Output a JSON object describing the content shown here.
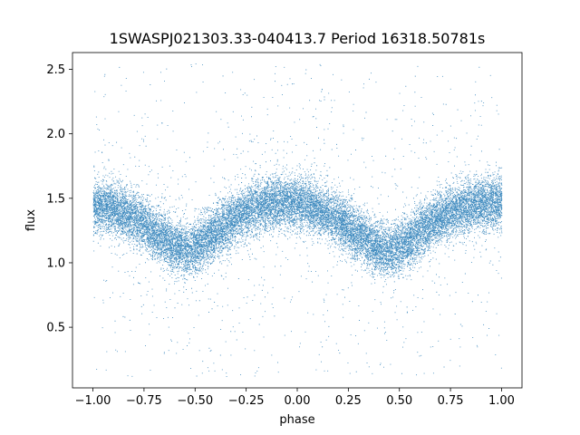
{
  "chart_data": {
    "type": "scatter",
    "title": "1SWASPJ021303.33-040413.7 Period 16318.50781s",
    "xlabel": "phase",
    "ylabel": "flux",
    "xlim": [
      -1.1,
      1.1
    ],
    "ylim": [
      0.03,
      2.63
    ],
    "x_ticks": [
      -1.0,
      -0.75,
      -0.5,
      -0.25,
      0.0,
      0.25,
      0.5,
      0.75,
      1.0
    ],
    "x_tick_labels": [
      "−1.00",
      "−0.75",
      "−0.50",
      "−0.25",
      "0.00",
      "0.25",
      "0.50",
      "0.75",
      "1.00"
    ],
    "y_ticks": [
      0.5,
      1.0,
      1.5,
      2.0,
      2.5
    ],
    "y_tick_labels": [
      "0.5",
      "1.0",
      "1.5",
      "2.0",
      "2.5"
    ],
    "grid": false,
    "legend": "none",
    "series_color": "#1f77b4",
    "light_curve": {
      "phase": [
        -1.0,
        -0.9,
        -0.8,
        -0.7,
        -0.6,
        -0.55,
        -0.5,
        -0.4,
        -0.3,
        -0.2,
        -0.1,
        0.0,
        0.1,
        0.2,
        0.3,
        0.4,
        0.45,
        0.5,
        0.6,
        0.7,
        0.8,
        0.9,
        1.0
      ],
      "flux": [
        1.45,
        1.42,
        1.35,
        1.24,
        1.13,
        1.1,
        1.12,
        1.24,
        1.36,
        1.44,
        1.47,
        1.47,
        1.42,
        1.33,
        1.22,
        1.12,
        1.09,
        1.12,
        1.24,
        1.36,
        1.43,
        1.46,
        1.48
      ]
    },
    "scatter": {
      "n_points": 22000,
      "core_sigma": 0.1,
      "outlier_fraction": 0.06,
      "flux_range": [
        0.12,
        2.55
      ]
    }
  }
}
